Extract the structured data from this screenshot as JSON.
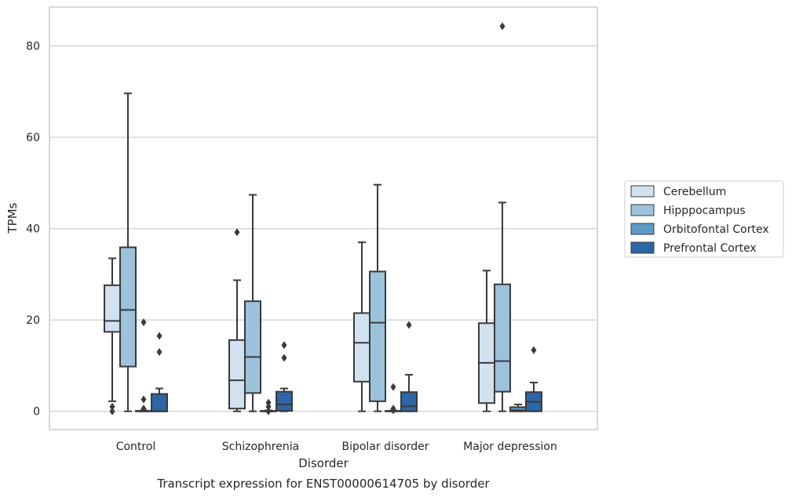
{
  "caption": "Transcript expression for ENST00000614705 by disorder",
  "chart_data": {
    "type": "box",
    "title": "",
    "xlabel": "Disorder",
    "ylabel": "TPMs",
    "ylim": [
      -4,
      88.5
    ],
    "yticks": [
      0,
      20,
      40,
      60,
      80
    ],
    "grid": "horizontal",
    "legend_position": "right-outside",
    "categories": [
      "Control",
      "Schizophrenia",
      "Bipolar disorder",
      "Major depression"
    ],
    "series": [
      {
        "name": "Cerebellum",
        "color": "#d2e1f0",
        "boxes": [
          {
            "min": 2.2,
            "q1": 17.4,
            "median": 19.8,
            "q3": 27.6,
            "max": 33.5,
            "outliers": [
              1.0,
              0.0
            ]
          },
          {
            "min": 0.0,
            "q1": 0.6,
            "median": 6.8,
            "q3": 15.6,
            "max": 28.7,
            "outliers": [
              39.2
            ]
          },
          {
            "min": 0.0,
            "q1": 6.5,
            "median": 15.0,
            "q3": 21.5,
            "max": 37.0,
            "outliers": []
          },
          {
            "min": 0.0,
            "q1": 1.8,
            "median": 10.6,
            "q3": 19.3,
            "max": 30.8,
            "outliers": []
          }
        ]
      },
      {
        "name": "Hipppocampus",
        "color": "#9cc2dc",
        "boxes": [
          {
            "min": 0.0,
            "q1": 9.8,
            "median": 22.2,
            "q3": 35.9,
            "max": 69.6,
            "outliers": []
          },
          {
            "min": 0.0,
            "q1": 4.0,
            "median": 11.9,
            "q3": 24.1,
            "max": 47.4,
            "outliers": []
          },
          {
            "min": 0.0,
            "q1": 2.2,
            "median": 19.4,
            "q3": 30.6,
            "max": 49.6,
            "outliers": []
          },
          {
            "min": 0.0,
            "q1": 4.3,
            "median": 11.0,
            "q3": 27.8,
            "max": 45.7,
            "outliers": [
              84.3
            ]
          }
        ]
      },
      {
        "name": "Orbitofontal Cortex",
        "color": "#5e9ac7",
        "boxes": [
          {
            "min": 0.0,
            "q1": 0.0,
            "median": 0.0,
            "q3": 0.1,
            "max": 0.2,
            "outliers": [
              19.5,
              2.6,
              0.6
            ]
          },
          {
            "min": 0.0,
            "q1": 0.0,
            "median": 0.0,
            "q3": 0.1,
            "max": 0.2,
            "outliers": [
              1.9,
              1.0,
              0.0
            ]
          },
          {
            "min": 0.0,
            "q1": 0.0,
            "median": 0.0,
            "q3": 0.1,
            "max": 0.2,
            "outliers": [
              5.3,
              0.6,
              0.2
            ]
          },
          {
            "min": 0.0,
            "q1": 0.0,
            "median": 0.2,
            "q3": 0.9,
            "max": 1.5,
            "outliers": []
          }
        ]
      },
      {
        "name": "Prefrontal Cortex",
        "color": "#2c66a4",
        "boxes": [
          {
            "min": 0.0,
            "q1": 0.0,
            "median": 0.0,
            "q3": 3.8,
            "max": 5.0,
            "outliers": [
              16.5,
              13.0
            ]
          },
          {
            "min": 0.0,
            "q1": 0.1,
            "median": 1.5,
            "q3": 4.3,
            "max": 5.0,
            "outliers": [
              14.5,
              11.7
            ]
          },
          {
            "min": 0.0,
            "q1": 0.0,
            "median": 1.1,
            "q3": 4.2,
            "max": 8.0,
            "outliers": [
              18.9
            ]
          },
          {
            "min": 0.0,
            "q1": 0.0,
            "median": 2.1,
            "q3": 4.2,
            "max": 6.3,
            "outliers": [
              13.4
            ]
          }
        ]
      }
    ]
  },
  "colors": {
    "box_edge": "#3a3a3a",
    "grid": "#cccccc",
    "frame": "#cccccc"
  }
}
